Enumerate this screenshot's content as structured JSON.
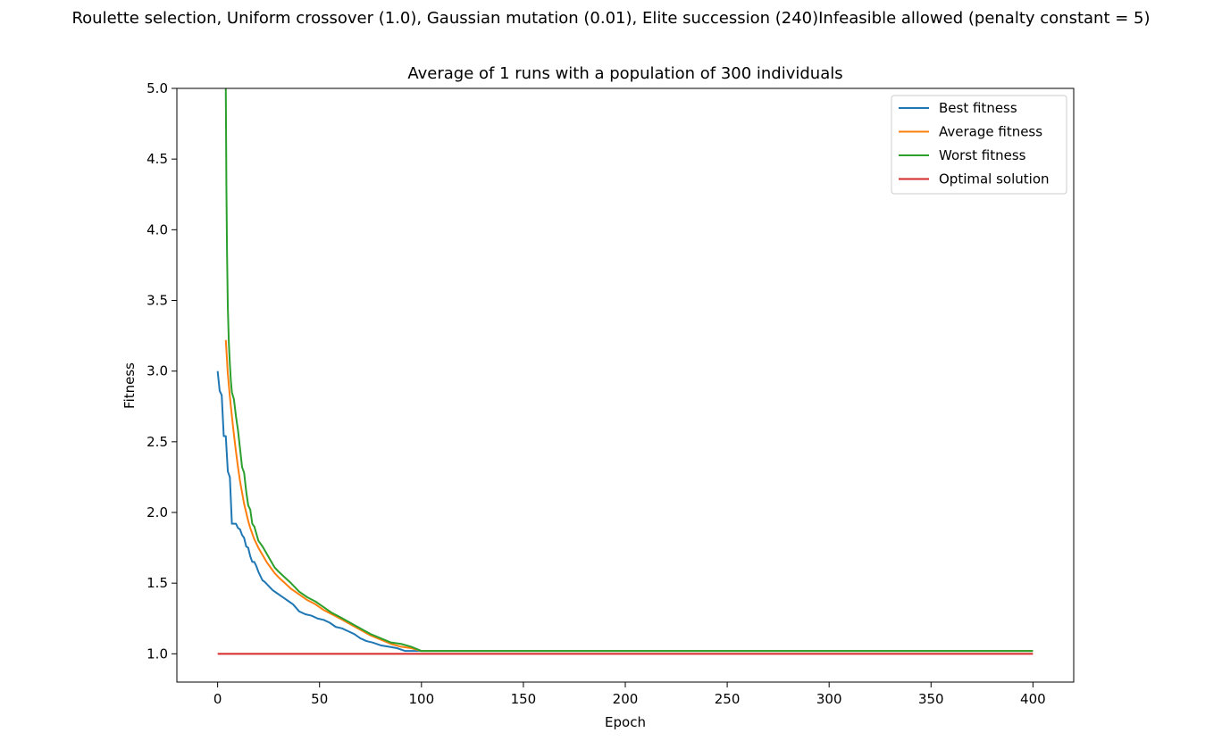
{
  "figure": {
    "suptitle": "Roulette selection, Uniform crossover (1.0), Gaussian mutation (0.01), Elite succession (240)Infeasible allowed (penalty constant = 5)"
  },
  "chart_data": {
    "type": "line",
    "title": "Average of 1 runs with a population of 300 individuals",
    "xlabel": "Epoch",
    "ylabel": "Fitness",
    "xlim": [
      -20,
      420
    ],
    "ylim": [
      0.8,
      5.0
    ],
    "xticks": [
      "0",
      "50",
      "100",
      "150",
      "200",
      "250",
      "300",
      "350",
      "400"
    ],
    "yticks": [
      "1.0",
      "1.5",
      "2.0",
      "2.5",
      "3.0",
      "3.5",
      "4.0",
      "4.5",
      "5.0"
    ],
    "grid": false,
    "legend_position": "top-right",
    "series": [
      {
        "name": "Best fitness",
        "color": "#1f77b4",
        "x": [
          0,
          1,
          2,
          3,
          4,
          5,
          6,
          7,
          8,
          9,
          10,
          11,
          12,
          13,
          14,
          15,
          16,
          17,
          18,
          19,
          20,
          21,
          22,
          23,
          25,
          27,
          29,
          31,
          33,
          35,
          37,
          40,
          43,
          46,
          49,
          52,
          55,
          58,
          61,
          64,
          67,
          70,
          73,
          76,
          80,
          84,
          88,
          92,
          96,
          100,
          400
        ],
        "y": [
          3.0,
          2.86,
          2.83,
          2.54,
          2.54,
          2.29,
          2.25,
          1.92,
          1.92,
          1.92,
          1.89,
          1.88,
          1.84,
          1.82,
          1.76,
          1.75,
          1.69,
          1.65,
          1.65,
          1.62,
          1.58,
          1.55,
          1.52,
          1.51,
          1.48,
          1.45,
          1.43,
          1.41,
          1.39,
          1.37,
          1.35,
          1.3,
          1.28,
          1.27,
          1.25,
          1.24,
          1.22,
          1.19,
          1.18,
          1.16,
          1.14,
          1.11,
          1.09,
          1.08,
          1.06,
          1.05,
          1.04,
          1.02,
          1.02,
          1.02,
          1.02
        ]
      },
      {
        "name": "Average fitness",
        "color": "#ff7f0e",
        "x": [
          4,
          5,
          6,
          7,
          8,
          9,
          10,
          11,
          12,
          13,
          14,
          15,
          16,
          17,
          18,
          19,
          20,
          22,
          24,
          26,
          28,
          30,
          33,
          36,
          40,
          44,
          48,
          52,
          56,
          60,
          65,
          70,
          75,
          80,
          85,
          90,
          95,
          100,
          400
        ],
        "y": [
          3.22,
          2.98,
          2.82,
          2.68,
          2.55,
          2.43,
          2.32,
          2.22,
          2.14,
          2.06,
          2.0,
          1.94,
          1.89,
          1.85,
          1.81,
          1.78,
          1.75,
          1.7,
          1.65,
          1.61,
          1.57,
          1.54,
          1.5,
          1.46,
          1.42,
          1.38,
          1.35,
          1.31,
          1.28,
          1.25,
          1.21,
          1.17,
          1.13,
          1.1,
          1.07,
          1.05,
          1.04,
          1.02,
          1.02
        ]
      },
      {
        "name": "Worst fitness",
        "color": "#2ca02c",
        "x": [
          4,
          4.3,
          4.6,
          5,
          5.5,
          6,
          6.5,
          7,
          8,
          9,
          10,
          11,
          12,
          13,
          14,
          15,
          16,
          17,
          18,
          19,
          20,
          22,
          24,
          26,
          28,
          30,
          33,
          36,
          40,
          44,
          48,
          52,
          56,
          60,
          65,
          70,
          75,
          80,
          85,
          90,
          95,
          100,
          400
        ],
        "y": [
          5.0,
          4.3,
          3.85,
          3.45,
          3.2,
          3.05,
          2.93,
          2.85,
          2.8,
          2.68,
          2.58,
          2.45,
          2.32,
          2.28,
          2.15,
          2.05,
          2.02,
          1.92,
          1.9,
          1.85,
          1.8,
          1.76,
          1.71,
          1.66,
          1.61,
          1.58,
          1.54,
          1.5,
          1.44,
          1.4,
          1.37,
          1.33,
          1.29,
          1.26,
          1.22,
          1.18,
          1.14,
          1.11,
          1.08,
          1.07,
          1.05,
          1.02,
          1.02
        ]
      },
      {
        "name": "Optimal solution",
        "color": "#d62728",
        "x": [
          0,
          400
        ],
        "y": [
          1.0,
          1.0
        ]
      }
    ]
  }
}
